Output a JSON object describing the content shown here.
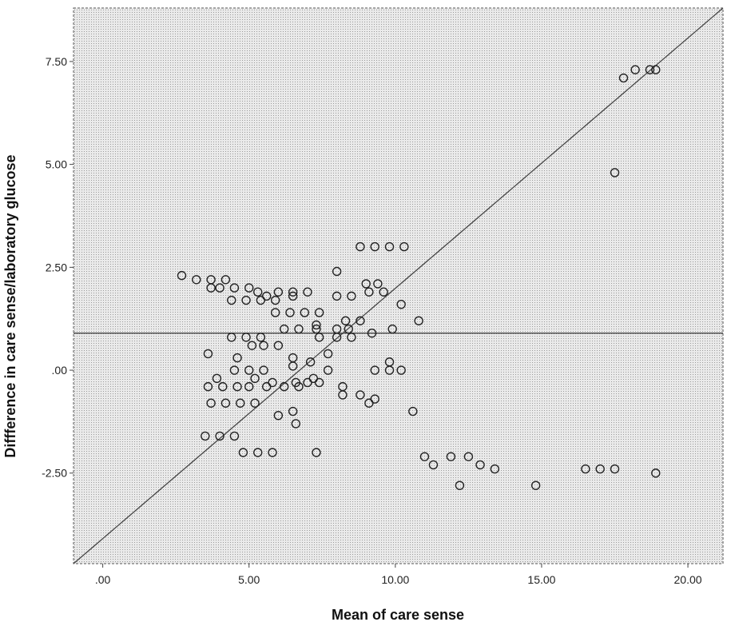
{
  "chart_data": {
    "type": "scatter",
    "title": "",
    "xlabel": "Mean of care sense",
    "ylabel": "Diffference in care sense/laboratory glucose",
    "xlim": [
      -1.0,
      21.2
    ],
    "ylim": [
      -4.7,
      8.8
    ],
    "xticks": [
      0,
      5,
      10,
      15,
      20
    ],
    "xtick_labels": [
      ".00",
      "5.00",
      "10.00",
      "15.00",
      "20.00"
    ],
    "yticks": [
      -2.5,
      0,
      2.5,
      5,
      7.5
    ],
    "ytick_labels": [
      "-2.50",
      ".00",
      "2.50",
      "5.00",
      "7.50"
    ],
    "grid": false,
    "legend": "none",
    "background": "dotted-gray",
    "marker": "open-circle",
    "reference_lines": [
      {
        "kind": "horizontal",
        "y": 0.9
      },
      {
        "kind": "line",
        "from": [
          -1.0,
          -4.7
        ],
        "to": [
          21.2,
          8.8
        ]
      }
    ],
    "points": [
      [
        2.7,
        2.3
      ],
      [
        3.2,
        2.2
      ],
      [
        3.7,
        2.2
      ],
      [
        4.2,
        2.2
      ],
      [
        3.7,
        2.0
      ],
      [
        4.0,
        2.0
      ],
      [
        4.5,
        2.0
      ],
      [
        5.0,
        2.0
      ],
      [
        5.3,
        1.9
      ],
      [
        6.0,
        1.9
      ],
      [
        6.5,
        1.9
      ],
      [
        7.0,
        1.9
      ],
      [
        5.6,
        1.8
      ],
      [
        6.5,
        1.8
      ],
      [
        4.4,
        1.7
      ],
      [
        4.9,
        1.7
      ],
      [
        5.4,
        1.7
      ],
      [
        5.9,
        1.7
      ],
      [
        5.9,
        1.4
      ],
      [
        6.4,
        1.4
      ],
      [
        6.9,
        1.4
      ],
      [
        7.4,
        1.4
      ],
      [
        8.0,
        1.8
      ],
      [
        8.5,
        1.8
      ],
      [
        9.0,
        2.1
      ],
      [
        9.4,
        2.1
      ],
      [
        8.0,
        2.4
      ],
      [
        8.8,
        3.0
      ],
      [
        9.3,
        3.0
      ],
      [
        9.8,
        3.0
      ],
      [
        10.3,
        3.0
      ],
      [
        9.1,
        1.9
      ],
      [
        9.6,
        1.9
      ],
      [
        10.2,
        1.6
      ],
      [
        10.8,
        1.2
      ],
      [
        8.8,
        1.2
      ],
      [
        8.3,
        1.2
      ],
      [
        7.3,
        1.1
      ],
      [
        6.2,
        1.0
      ],
      [
        6.7,
        1.0
      ],
      [
        7.3,
        1.0
      ],
      [
        8.0,
        1.0
      ],
      [
        8.4,
        1.0
      ],
      [
        9.2,
        0.9
      ],
      [
        9.9,
        1.0
      ],
      [
        4.4,
        0.8
      ],
      [
        4.9,
        0.8
      ],
      [
        5.4,
        0.8
      ],
      [
        5.1,
        0.6
      ],
      [
        5.5,
        0.6
      ],
      [
        6.0,
        0.6
      ],
      [
        7.4,
        0.8
      ],
      [
        8.0,
        0.8
      ],
      [
        8.5,
        0.8
      ],
      [
        7.7,
        0.4
      ],
      [
        3.6,
        0.4
      ],
      [
        6.5,
        0.3
      ],
      [
        4.6,
        0.3
      ],
      [
        7.1,
        0.2
      ],
      [
        9.8,
        0.2
      ],
      [
        6.5,
        0.1
      ],
      [
        4.5,
        0.0
      ],
      [
        5.0,
        0.0
      ],
      [
        5.5,
        0.0
      ],
      [
        7.7,
        0.0
      ],
      [
        9.3,
        0.0
      ],
      [
        9.8,
        0.0
      ],
      [
        10.2,
        0.0
      ],
      [
        3.9,
        -0.2
      ],
      [
        5.2,
        -0.2
      ],
      [
        7.2,
        -0.2
      ],
      [
        3.6,
        -0.4
      ],
      [
        4.1,
        -0.4
      ],
      [
        4.6,
        -0.4
      ],
      [
        5.0,
        -0.4
      ],
      [
        5.6,
        -0.4
      ],
      [
        6.2,
        -0.4
      ],
      [
        6.6,
        -0.3
      ],
      [
        7.0,
        -0.3
      ],
      [
        7.4,
        -0.3
      ],
      [
        5.8,
        -0.3
      ],
      [
        6.7,
        -0.4
      ],
      [
        8.2,
        -0.4
      ],
      [
        8.2,
        -0.6
      ],
      [
        8.8,
        -0.6
      ],
      [
        9.3,
        -0.7
      ],
      [
        9.1,
        -0.8
      ],
      [
        3.7,
        -0.8
      ],
      [
        4.2,
        -0.8
      ],
      [
        4.7,
        -0.8
      ],
      [
        5.2,
        -0.8
      ],
      [
        6.0,
        -1.1
      ],
      [
        6.5,
        -1.0
      ],
      [
        6.6,
        -1.3
      ],
      [
        10.6,
        -1.0
      ],
      [
        3.5,
        -1.6
      ],
      [
        4.0,
        -1.6
      ],
      [
        4.5,
        -1.6
      ],
      [
        4.8,
        -2.0
      ],
      [
        5.3,
        -2.0
      ],
      [
        5.8,
        -2.0
      ],
      [
        7.3,
        -2.0
      ],
      [
        11.0,
        -2.1
      ],
      [
        11.9,
        -2.1
      ],
      [
        12.5,
        -2.1
      ],
      [
        11.3,
        -2.3
      ],
      [
        12.9,
        -2.3
      ],
      [
        13.4,
        -2.4
      ],
      [
        12.2,
        -2.8
      ],
      [
        14.8,
        -2.8
      ],
      [
        16.5,
        -2.4
      ],
      [
        17.0,
        -2.4
      ],
      [
        17.5,
        -2.4
      ],
      [
        18.9,
        -2.5
      ],
      [
        17.5,
        4.8
      ],
      [
        17.8,
        7.1
      ],
      [
        18.2,
        7.3
      ],
      [
        18.7,
        7.3
      ],
      [
        18.9,
        7.3
      ]
    ]
  }
}
